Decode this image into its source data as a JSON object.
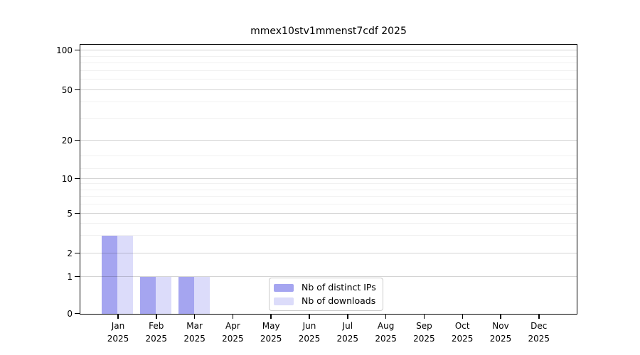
{
  "title": "mmex10stv1mmenst7cdf 2025",
  "chart_data": {
    "type": "bar",
    "title": "mmex10stv1mmenst7cdf 2025",
    "categories": [
      "Jan 2025",
      "Feb 2025",
      "Mar 2025",
      "Apr 2025",
      "May 2025",
      "Jun 2025",
      "Jul 2025",
      "Aug 2025",
      "Sep 2025",
      "Oct 2025",
      "Nov 2025",
      "Dec 2025"
    ],
    "x_tick_months": [
      "Jan",
      "Feb",
      "Mar",
      "Apr",
      "May",
      "Jun",
      "Jul",
      "Aug",
      "Sep",
      "Oct",
      "Nov",
      "Dec"
    ],
    "x_tick_year": "2025",
    "series": [
      {
        "name": "Nb of distinct IPs",
        "color": "#a5a5f0",
        "values": [
          3,
          1,
          1,
          0,
          0,
          0,
          0,
          0,
          0,
          0,
          0,
          0
        ]
      },
      {
        "name": "Nb of downloads",
        "color": "#dcdcfa",
        "values": [
          3,
          1,
          1,
          0,
          0,
          0,
          0,
          0,
          0,
          0,
          0,
          0
        ]
      }
    ],
    "y_ticks": [
      0,
      1,
      2,
      5,
      10,
      20,
      50,
      100
    ],
    "ylim": [
      0,
      110
    ],
    "yscale": "log-like",
    "grid": true,
    "legend_position": "lower center"
  },
  "legend": {
    "items": [
      {
        "label": "Nb of distinct IPs",
        "color": "#a5a5f0"
      },
      {
        "label": "Nb of downloads",
        "color": "#dcdcfa"
      }
    ]
  },
  "colors": {
    "distinct_ips": "#a5a5f0",
    "downloads": "#dcdcfa",
    "spine": "#000000"
  }
}
